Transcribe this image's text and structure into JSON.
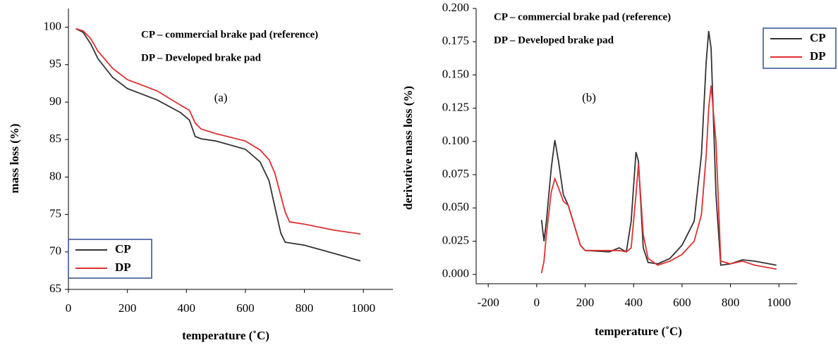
{
  "chart_data": [
    {
      "type": "line",
      "annotations": [
        "CP – commercial brake pad (reference)",
        "DP – Developed brake pad",
        "(a)"
      ],
      "x_label": "temperature (˚C)",
      "y_label": "mass loss (%)",
      "x": [
        25,
        50,
        75,
        100,
        150,
        200,
        300,
        380,
        410,
        430,
        450,
        500,
        600,
        650,
        680,
        700,
        720,
        735,
        750,
        800,
        900,
        990
      ],
      "series": [
        {
          "name": "CP",
          "color": "#333333",
          "values": [
            99.8,
            99.3,
            97.8,
            95.8,
            93.3,
            91.8,
            90.3,
            88.6,
            87.6,
            85.4,
            85.1,
            84.8,
            83.7,
            82,
            79.5,
            76,
            72.5,
            71.3,
            71.2,
            70.9,
            69.8,
            68.8
          ]
        },
        {
          "name": "DP",
          "color": "#e03030",
          "values": [
            99.8,
            99.5,
            98.5,
            96.8,
            94.5,
            93,
            91.5,
            89.6,
            88.9,
            87.2,
            86.4,
            85.8,
            84.8,
            83.6,
            82.3,
            80.5,
            77.5,
            75.3,
            74,
            73.7,
            72.9,
            72.4
          ]
        }
      ],
      "xlim": [
        0,
        1100
      ],
      "xticks": [
        0,
        200,
        400,
        600,
        800,
        1000
      ],
      "ylim": [
        65,
        102.5
      ],
      "yticks": [
        65,
        70,
        75,
        80,
        85,
        90,
        95,
        100
      ],
      "legend": "lower left"
    },
    {
      "type": "line",
      "annotations": [
        "CP – commercial brake pad (reference)",
        "DP – Developed brake pad",
        "(b)"
      ],
      "x_label": "temperature (˚C)",
      "y_label": "derivative mass loss (%)",
      "x": [
        20,
        30,
        40,
        60,
        75,
        90,
        110,
        130,
        150,
        180,
        200,
        300,
        340,
        370,
        390,
        410,
        420,
        440,
        460,
        500,
        550,
        600,
        650,
        680,
        700,
        710,
        720,
        740,
        760,
        800,
        850,
        900,
        990
      ],
      "series": [
        {
          "name": "CP",
          "color": "#333333",
          "values": [
            0.041,
            0.025,
            0.04,
            0.08,
            0.101,
            0.085,
            0.06,
            0.052,
            0.04,
            0.022,
            0.018,
            0.017,
            0.02,
            0.017,
            0.04,
            0.092,
            0.085,
            0.02,
            0.009,
            0.008,
            0.012,
            0.022,
            0.04,
            0.09,
            0.16,
            0.183,
            0.17,
            0.06,
            0.007,
            0.008,
            0.011,
            0.01,
            0.007
          ]
        },
        {
          "name": "DP",
          "color": "#e03030",
          "values": [
            0.001,
            0.01,
            0.03,
            0.062,
            0.072,
            0.065,
            0.055,
            0.052,
            0.04,
            0.022,
            0.018,
            0.018,
            0.018,
            0.017,
            0.02,
            0.06,
            0.083,
            0.03,
            0.012,
            0.007,
            0.01,
            0.015,
            0.025,
            0.045,
            0.09,
            0.125,
            0.142,
            0.1,
            0.01,
            0.008,
            0.01,
            0.007,
            0.004
          ]
        }
      ],
      "xlim": [
        -250,
        1075
      ],
      "xticks": [
        -200,
        0,
        200,
        400,
        600,
        800,
        1000
      ],
      "ylim": [
        -0.007,
        0.2
      ],
      "yticks": [
        {
          "value": 0,
          "label": "0.000"
        },
        {
          "value": 0.025,
          "label": "0.025"
        },
        {
          "value": 0.05,
          "label": "0.050"
        },
        {
          "value": 0.075,
          "label": "0.075"
        },
        {
          "value": 0.1,
          "label": "0.100"
        },
        {
          "value": 0.125,
          "label": "0.125"
        },
        {
          "value": 0.15,
          "label": "0.150"
        },
        {
          "value": 0.175,
          "label": "0.175"
        },
        {
          "value": 0.2,
          "label": "0.200"
        }
      ],
      "legend": "upper right"
    }
  ]
}
